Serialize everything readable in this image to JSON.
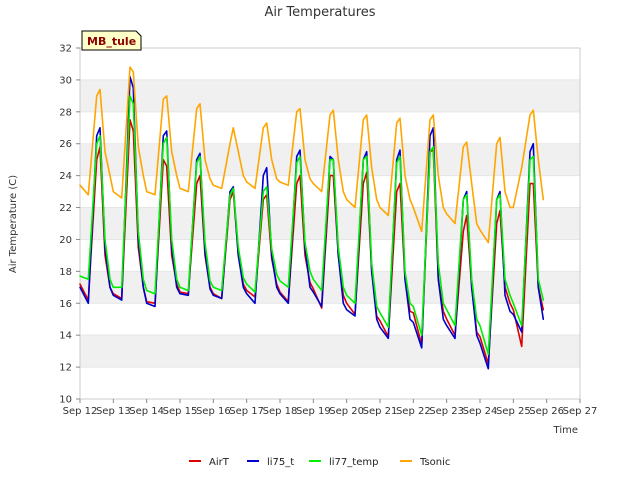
{
  "chart_data": {
    "type": "line",
    "title": "Air Temperatures",
    "xlabel": "Time",
    "ylabel": "Air Temperature (C)",
    "site_label": "MB_tule",
    "ylim": [
      10,
      32
    ],
    "yticks": [
      10,
      12,
      14,
      16,
      18,
      20,
      22,
      24,
      26,
      28,
      30,
      32
    ],
    "xlim": [
      "Sep 12",
      "Sep 27"
    ],
    "xtick_labels": [
      "Sep 12",
      "Sep 13",
      "Sep 14",
      "Sep 15",
      "Sep 16",
      "Sep 17",
      "Sep 18",
      "Sep 19",
      "Sep 20",
      "Sep 21",
      "Sep 22",
      "Sep 23",
      "Sep 24",
      "Sep 25",
      "Sep 26",
      "Sep 27"
    ],
    "grid": "horizontal bands",
    "legend_position": "bottom",
    "x_days": [
      12.0,
      12.25,
      12.5,
      12.6,
      12.75,
      12.9,
      13.0,
      13.25,
      13.5,
      13.6,
      13.75,
      13.9,
      14.0,
      14.25,
      14.5,
      14.6,
      14.75,
      14.9,
      15.0,
      15.25,
      15.5,
      15.6,
      15.75,
      15.9,
      16.0,
      16.25,
      16.5,
      16.6,
      16.75,
      16.9,
      17.0,
      17.25,
      17.5,
      17.6,
      17.75,
      17.9,
      18.0,
      18.25,
      18.5,
      18.6,
      18.75,
      18.9,
      19.0,
      19.25,
      19.5,
      19.6,
      19.75,
      19.9,
      20.0,
      20.25,
      20.5,
      20.6,
      20.75,
      20.9,
      21.0,
      21.25,
      21.5,
      21.6,
      21.75,
      21.9,
      22.0,
      22.25,
      22.5,
      22.6,
      22.75,
      22.9,
      23.0,
      23.25,
      23.5,
      23.6,
      23.75,
      23.9,
      24.0,
      24.25,
      24.5,
      24.6,
      24.75,
      24.9,
      25.0,
      25.25,
      25.5,
      25.6,
      25.75,
      25.9,
      26.0,
      26.25
    ],
    "series": [
      {
        "name": "AirT",
        "color": "#dd0000",
        "values": [
          17.2,
          16.2,
          25.0,
          25.8,
          19.0,
          17.0,
          16.6,
          16.3,
          27.5,
          26.8,
          19.5,
          17.0,
          16.1,
          16.0,
          25.0,
          24.6,
          19.0,
          17.2,
          16.7,
          16.6,
          23.5,
          24.0,
          19.0,
          17.0,
          16.6,
          16.3,
          22.5,
          23.0,
          19.0,
          17.2,
          16.8,
          16.4,
          22.5,
          22.8,
          18.8,
          17.2,
          16.7,
          16.1,
          23.5,
          24.0,
          19.0,
          17.3,
          16.9,
          15.7,
          24.0,
          24.0,
          19.0,
          16.5,
          16.0,
          15.3,
          23.5,
          24.2,
          18.0,
          15.2,
          14.9,
          13.9,
          23.0,
          23.5,
          17.5,
          15.5,
          15.4,
          13.4,
          25.5,
          25.6,
          17.5,
          15.5,
          15.0,
          14.0,
          20.5,
          21.5,
          17.0,
          14.2,
          13.9,
          12.2,
          21.0,
          21.8,
          17.0,
          16.0,
          15.6,
          13.3,
          23.5,
          23.5,
          17.0,
          15.6
        ]
      },
      {
        "name": "li75_t",
        "color": "#0000cc",
        "values": [
          17.0,
          16.0,
          26.5,
          27.0,
          19.5,
          17.0,
          16.5,
          16.2,
          30.2,
          29.5,
          20.0,
          17.0,
          16.0,
          15.8,
          26.5,
          26.8,
          19.5,
          17.0,
          16.6,
          16.5,
          25.0,
          25.4,
          19.2,
          16.9,
          16.5,
          16.3,
          23.0,
          23.3,
          19.0,
          17.0,
          16.6,
          16.0,
          24.0,
          24.5,
          19.0,
          17.0,
          16.6,
          16.0,
          25.2,
          25.6,
          19.5,
          17.0,
          16.7,
          15.8,
          25.2,
          25.0,
          19.0,
          16.0,
          15.6,
          15.2,
          25.0,
          25.5,
          18.0,
          15.0,
          14.5,
          13.8,
          25.0,
          25.6,
          17.5,
          15.0,
          14.8,
          13.2,
          26.5,
          27.0,
          17.5,
          15.0,
          14.6,
          13.8,
          22.5,
          23.0,
          17.0,
          14.0,
          13.5,
          11.9,
          22.5,
          23.0,
          16.5,
          15.5,
          15.3,
          14.2,
          25.5,
          26.0,
          17.0,
          15.0
        ]
      },
      {
        "name": "li77_temp",
        "color": "#00ee00",
        "values": [
          17.7,
          17.5,
          26.0,
          26.5,
          20.0,
          17.5,
          17.0,
          17.0,
          29.0,
          28.5,
          20.5,
          17.5,
          16.8,
          16.6,
          26.0,
          26.4,
          20.0,
          17.5,
          17.0,
          16.8,
          24.8,
          25.2,
          19.8,
          17.4,
          17.0,
          16.8,
          22.8,
          23.2,
          19.5,
          17.6,
          17.2,
          16.7,
          23.0,
          23.3,
          19.4,
          17.8,
          17.4,
          17.0,
          24.8,
          25.2,
          19.8,
          18.0,
          17.5,
          16.8,
          25.0,
          25.0,
          19.5,
          17.0,
          16.5,
          16.0,
          25.0,
          25.2,
          18.5,
          15.8,
          15.4,
          14.5,
          24.8,
          25.2,
          18.0,
          16.0,
          15.8,
          14.0,
          25.5,
          25.8,
          18.5,
          16.0,
          15.6,
          14.6,
          22.5,
          22.8,
          17.5,
          15.0,
          14.6,
          12.8,
          22.5,
          22.8,
          17.5,
          16.5,
          16.0,
          14.6,
          25.0,
          25.2,
          17.5,
          16.2
        ]
      },
      {
        "name": "Tsonic",
        "color": "#ffa500",
        "values": [
          23.4,
          22.8,
          29.0,
          29.4,
          25.5,
          24.0,
          23.0,
          22.6,
          30.8,
          30.5,
          25.8,
          24.0,
          23.0,
          22.8,
          28.8,
          29.0,
          25.5,
          24.0,
          23.2,
          23.0,
          28.2,
          28.5,
          25.0,
          23.8,
          23.4,
          23.2,
          26.0,
          27.0,
          25.5,
          24.0,
          23.6,
          23.2,
          27.0,
          27.3,
          25.0,
          23.8,
          23.6,
          23.4,
          28.0,
          28.2,
          25.0,
          23.8,
          23.5,
          23.0,
          27.8,
          28.1,
          25.0,
          23.0,
          22.5,
          22.0,
          27.5,
          27.8,
          24.5,
          22.5,
          22.0,
          21.5,
          27.3,
          27.6,
          24.0,
          22.5,
          22.0,
          20.5,
          27.5,
          27.8,
          24.0,
          22.0,
          21.6,
          21.0,
          25.8,
          26.1,
          23.5,
          21.0,
          20.6,
          19.8,
          26.0,
          26.4,
          23.0,
          22.0,
          22.0,
          24.5,
          27.8,
          28.1,
          25.0,
          22.5
        ]
      }
    ]
  }
}
